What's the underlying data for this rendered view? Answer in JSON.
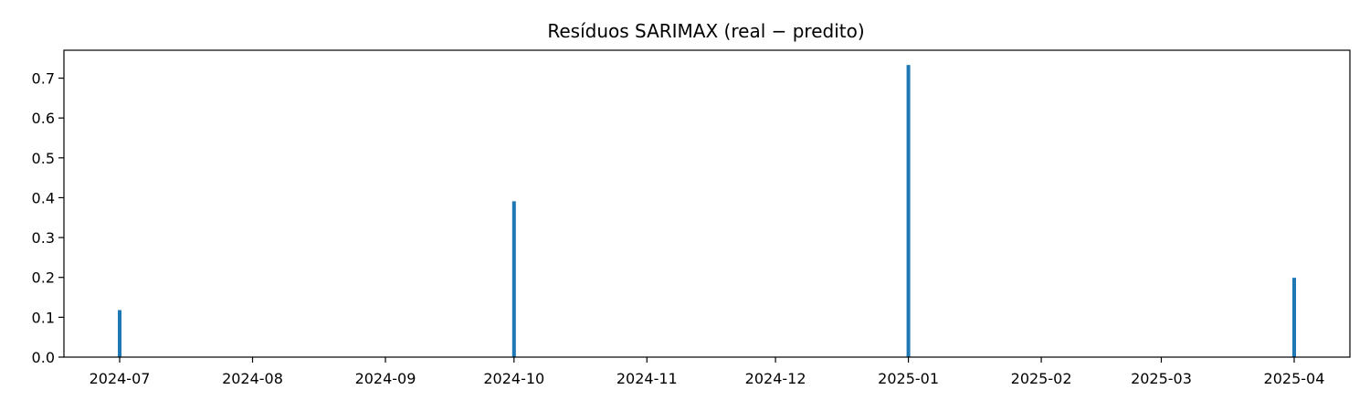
{
  "chart_data": {
    "type": "bar",
    "title": "Resíduos SARIMAX (real − predito)",
    "xlabel": "",
    "ylabel": "",
    "x_axis": "date",
    "x": [
      "2024-07-01",
      "2024-10-01",
      "2025-01-01",
      "2025-04-01"
    ],
    "values": [
      0.118,
      0.391,
      0.733,
      0.199
    ],
    "xlim": [
      "2024-06-18",
      "2025-04-14"
    ],
    "ylim": [
      0,
      0.77
    ],
    "x_ticks": [
      "2024-07-01",
      "2024-08-01",
      "2024-09-01",
      "2024-10-01",
      "2024-11-01",
      "2024-12-01",
      "2025-01-01",
      "2025-02-01",
      "2025-03-01",
      "2025-04-01"
    ],
    "x_tick_labels": [
      "2024-07",
      "2024-08",
      "2024-09",
      "2024-10",
      "2024-11",
      "2024-12",
      "2025-01",
      "2025-02",
      "2025-03",
      "2025-04"
    ],
    "y_ticks": [
      0.0,
      0.1,
      0.2,
      0.3,
      0.4,
      0.5,
      0.6,
      0.7
    ],
    "y_tick_labels": [
      "0.0",
      "0.1",
      "0.2",
      "0.3",
      "0.4",
      "0.5",
      "0.6",
      "0.7"
    ],
    "grid": false,
    "legend": "none",
    "bar_color": "#1f77b4"
  }
}
